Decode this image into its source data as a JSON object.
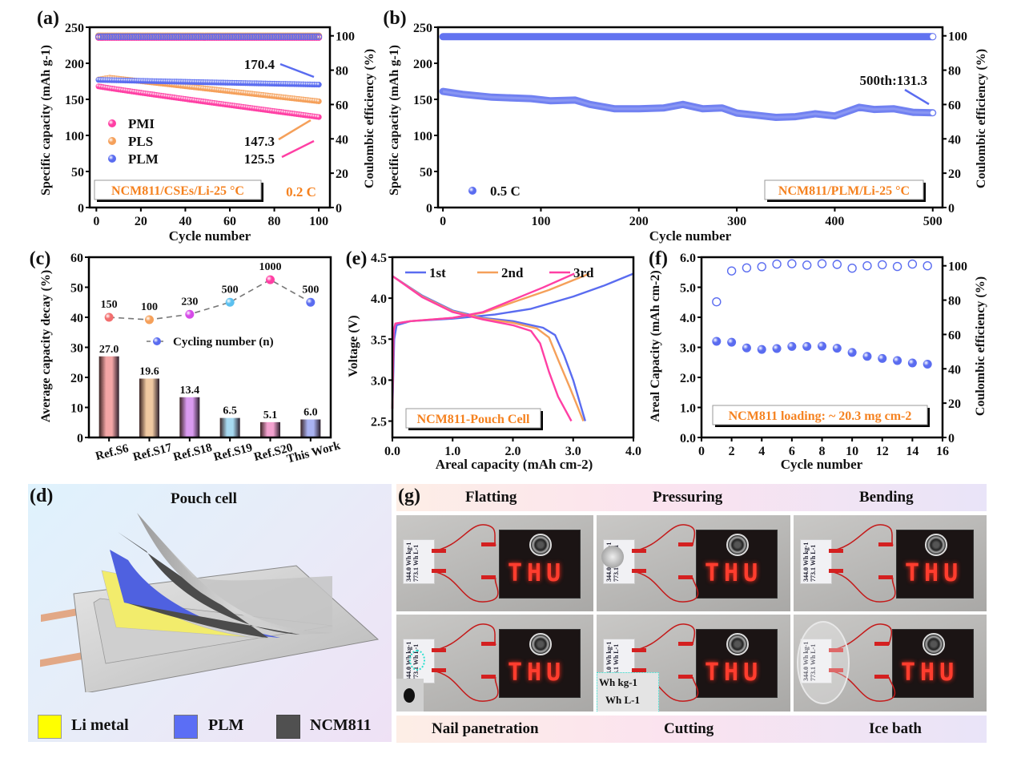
{
  "panel_labels": {
    "a": "(a)",
    "b": "(b)",
    "c": "(c)",
    "d": "(d)",
    "e": "(e)",
    "f": "(f)",
    "g": "(g)"
  },
  "chart_data": [
    {
      "id": "a",
      "type": "scatter",
      "xlabel": "Cycle number",
      "ylabel": "Specific capacity (mAh g-1)",
      "y2label": "Coulombic efficiency (%)",
      "xlim": [
        -3,
        105
      ],
      "xticks": [
        0,
        20,
        40,
        60,
        80,
        100
      ],
      "ylim": [
        0,
        250
      ],
      "yticks": [
        0,
        50,
        100,
        150,
        200,
        250
      ],
      "y2lim": [
        0,
        105
      ],
      "y2ticks": [
        0,
        20,
        40,
        60,
        80,
        100
      ],
      "series": [
        {
          "name": "PMI",
          "color": "#ff3fa4",
          "capacity_start": 168,
          "capacity_end": 125.5,
          "ce": 99
        },
        {
          "name": "PLS",
          "color": "#f5a05a",
          "capacity_start": 177,
          "capacity_peak": 180,
          "capacity_end": 147.3,
          "ce": 100
        },
        {
          "name": "PLM",
          "color": "#5a6cf0",
          "capacity_start": 177,
          "capacity_end": 170.4,
          "ce": 99.5
        }
      ],
      "annotations": [
        "170.4",
        "147.3",
        "125.5"
      ],
      "box_text": "NCM811/CSEs/Li-25 °C",
      "rate_text": "0.2 C"
    },
    {
      "id": "b",
      "type": "scatter",
      "xlabel": "Cycle number",
      "ylabel": "Specific capacity (mAh g-1)",
      "y2label": "Coulombic efficiency (%)",
      "xlim": [
        -5,
        510
      ],
      "xticks": [
        0,
        100,
        200,
        300,
        400,
        500
      ],
      "ylim": [
        0,
        250
      ],
      "yticks": [
        0,
        50,
        100,
        150,
        200,
        250
      ],
      "y2lim": [
        0,
        105
      ],
      "y2ticks": [
        0,
        20,
        40,
        60,
        80,
        100
      ],
      "series": [
        {
          "name": "0.5 C",
          "color": "#5a6cf0",
          "capacity_x": [
            0,
            20,
            50,
            90,
            110,
            135,
            150,
            175,
            200,
            225,
            245,
            265,
            285,
            300,
            320,
            340,
            360,
            380,
            400,
            425,
            440,
            460,
            480,
            500
          ],
          "capacity_y": [
            161,
            157,
            153,
            151,
            148,
            149,
            143,
            137,
            137,
            138,
            143,
            137,
            138,
            131,
            128,
            125,
            126,
            130,
            127,
            139,
            136,
            137,
            132,
            131.3
          ],
          "ce": 99.5
        }
      ],
      "annotation": "500th:131.3",
      "box_text": "NCM811/PLM/Li-25 °C"
    },
    {
      "id": "c",
      "type": "bar",
      "ylabel": "Average capacity decay (%)",
      "ylim": [
        0,
        60
      ],
      "yticks": [
        0,
        10,
        20,
        30,
        40,
        50,
        60
      ],
      "categories": [
        "Ref.S6",
        "Ref.S17",
        "Ref.S18",
        "Ref.S19",
        "Ref.S20",
        "This Work"
      ],
      "values": [
        27.0,
        19.6,
        13.4,
        6.5,
        5.1,
        6.0
      ],
      "value_labels": [
        "27.0",
        "19.6",
        "13.4",
        "6.5",
        "5.1",
        "6.0"
      ],
      "bar_colors": [
        "#f4a6a6",
        "#f0c9a2",
        "#d99af0",
        "#a7d9f0",
        "#f3a2cf",
        "#a9b2f2"
      ],
      "line_series": {
        "name": "Cycling number (n)",
        "values_plot": [
          40,
          39.2,
          41,
          45,
          52.5,
          45
        ],
        "labels": [
          "150",
          "100",
          "230",
          "500",
          "1000",
          "500"
        ],
        "colors": [
          "#f26e6e",
          "#f5a05a",
          "#d64ae8",
          "#5bc0ef",
          "#ff3fa4",
          "#5a6cf0"
        ]
      }
    },
    {
      "id": "e",
      "type": "line",
      "xlabel": "Areal capacity (mAh cm-2)",
      "ylabel": "Voltage (V)",
      "xlim": [
        0,
        4.0
      ],
      "xticks": [
        "0.0",
        "1.0",
        "2.0",
        "3.0",
        "4.0"
      ],
      "ylim": [
        2.3,
        4.5
      ],
      "yticks": [
        "2.5",
        "3.0",
        "3.5",
        "4.0",
        "4.5"
      ],
      "series": [
        {
          "name": "1st",
          "color": "#5a6cf0",
          "charge": [
            [
              0,
              2.65
            ],
            [
              0.03,
              3.5
            ],
            [
              0.07,
              3.67
            ],
            [
              0.3,
              3.72
            ],
            [
              1,
              3.75
            ],
            [
              1.7,
              3.8
            ],
            [
              2.3,
              3.87
            ],
            [
              3,
              4.02
            ],
            [
              3.5,
              4.15
            ],
            [
              4.0,
              4.3
            ]
          ],
          "discharge": [
            [
              0,
              4.27
            ],
            [
              0.5,
              4.03
            ],
            [
              1,
              3.85
            ],
            [
              1.5,
              3.76
            ],
            [
              2,
              3.72
            ],
            [
              2.5,
              3.64
            ],
            [
              2.7,
              3.55
            ],
            [
              2.85,
              3.3
            ],
            [
              3.0,
              3.0
            ],
            [
              3.2,
              2.5
            ]
          ]
        },
        {
          "name": "2nd",
          "color": "#f5a05a",
          "charge": [
            [
              0,
              2.65
            ],
            [
              0.02,
              3.6
            ],
            [
              0.05,
              3.69
            ],
            [
              0.3,
              3.72
            ],
            [
              1,
              3.76
            ],
            [
              1.5,
              3.82
            ],
            [
              2,
              3.95
            ],
            [
              2.6,
              4.1
            ],
            [
              3.27,
              4.3
            ]
          ],
          "discharge": [
            [
              0,
              4.27
            ],
            [
              0.5,
              4.02
            ],
            [
              1,
              3.84
            ],
            [
              1.5,
              3.75
            ],
            [
              2,
              3.7
            ],
            [
              2.4,
              3.63
            ],
            [
              2.6,
              3.52
            ],
            [
              2.75,
              3.25
            ],
            [
              2.95,
              2.9
            ],
            [
              3.17,
              2.5
            ]
          ]
        },
        {
          "name": "3rd",
          "color": "#ff3fa4",
          "charge": [
            [
              0,
              2.65
            ],
            [
              0.02,
              3.6
            ],
            [
              0.05,
              3.69
            ],
            [
              0.3,
              3.72
            ],
            [
              1,
              3.76
            ],
            [
              1.5,
              3.83
            ],
            [
              2,
              3.98
            ],
            [
              2.5,
              4.13
            ],
            [
              3.02,
              4.3
            ]
          ],
          "discharge": [
            [
              0,
              4.27
            ],
            [
              0.5,
              4.01
            ],
            [
              1,
              3.83
            ],
            [
              1.5,
              3.74
            ],
            [
              2,
              3.67
            ],
            [
              2.3,
              3.6
            ],
            [
              2.45,
              3.45
            ],
            [
              2.6,
              3.1
            ],
            [
              2.75,
              2.8
            ],
            [
              2.97,
              2.5
            ]
          ]
        }
      ],
      "box_text": "NCM811-Pouch Cell"
    },
    {
      "id": "f",
      "type": "scatter",
      "xlabel": "Cycle number",
      "ylabel": "Areal Capacity (mAh cm-2)",
      "y2label": "Coulombic efficiency (%)",
      "xlim": [
        0,
        16
      ],
      "xticks": [
        0,
        2,
        4,
        6,
        8,
        10,
        12,
        14,
        16
      ],
      "ylim": [
        0,
        6.0
      ],
      "yticks": [
        "0.0",
        "1.0",
        "2.0",
        "3.0",
        "4.0",
        "5.0",
        "6.0"
      ],
      "y2lim": [
        0,
        105
      ],
      "y2ticks": [
        0,
        20,
        40,
        60,
        80,
        100
      ],
      "x": [
        1,
        2,
        3,
        4,
        5,
        6,
        7,
        8,
        9,
        10,
        11,
        12,
        13,
        14,
        15
      ],
      "capacity": [
        3.2,
        3.17,
        2.98,
        2.93,
        2.96,
        3.03,
        3.03,
        3.04,
        2.97,
        2.83,
        2.7,
        2.63,
        2.56,
        2.48,
        2.44
      ],
      "ce": [
        79.0,
        97.0,
        98.8,
        99.5,
        101.0,
        101.2,
        100.4,
        101.2,
        100.8,
        98.6,
        100.0,
        100.6,
        99.6,
        101.0,
        100.0
      ],
      "color": "#5a6cf0",
      "box_text": "NCM811 loading: ~ 20.3 mg cm-2"
    }
  ],
  "panel_d": {
    "title": "Pouch cell",
    "legend": [
      {
        "label": "Li metal",
        "color": "#ffff00"
      },
      {
        "label": "PLM",
        "color": "#5b6ef5"
      },
      {
        "label": "NCM811",
        "color": "#505050"
      }
    ]
  },
  "panel_g": {
    "top_labels": [
      "Flatting",
      "Pressuring",
      "Bending"
    ],
    "bottom_labels": [
      "Nail panetration",
      "Cutting",
      "Ice bath"
    ],
    "led_text": "THU",
    "card_text": "344.0 Wh kg-1 773.1 Wh L-1",
    "cut_text_1": "Wh kg-1",
    "cut_text_2": "Wh L-1"
  }
}
